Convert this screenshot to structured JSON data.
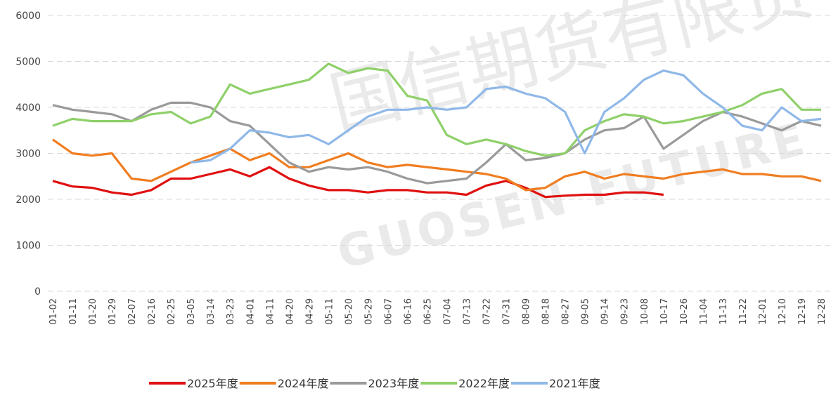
{
  "chart_data": {
    "type": "line",
    "watermark": [
      "国信期货有限责",
      "GUOSEN FUTURE"
    ],
    "categories": [
      "01-02",
      "01-11",
      "01-20",
      "01-29",
      "02-07",
      "02-16",
      "02-25",
      "03-05",
      "03-14",
      "03-23",
      "04-01",
      "04-11",
      "04-20",
      "04-29",
      "05-11",
      "05-20",
      "05-29",
      "06-07",
      "06-16",
      "06-25",
      "07-04",
      "07-13",
      "07-22",
      "07-31",
      "08-09",
      "08-18",
      "08-27",
      "09-05",
      "09-14",
      "09-23",
      "10-08",
      "10-17",
      "10-26",
      "11-04",
      "11-13",
      "11-22",
      "12-01",
      "12-10",
      "12-19",
      "12-28"
    ],
    "series": [
      {
        "name": "2025年度",
        "color": "#e01010",
        "values": [
          2400,
          2280,
          2250,
          2150,
          2100,
          2200,
          2450,
          2450,
          2550,
          2650,
          2500,
          2700,
          2450,
          2300,
          2200,
          2200,
          2150,
          2200,
          2200,
          2150,
          2150,
          2100,
          2300,
          2400,
          2250,
          2050,
          2080,
          2100,
          2100,
          2150,
          2150,
          2100,
          null,
          null,
          null,
          null,
          null,
          null,
          null,
          null
        ]
      },
      {
        "name": "2024年度",
        "color": "#f07d20",
        "values": [
          3300,
          3000,
          2950,
          3000,
          2450,
          2400,
          2600,
          2800,
          2950,
          3100,
          2850,
          3000,
          2700,
          2700,
          2850,
          3000,
          2800,
          2700,
          2750,
          2700,
          2650,
          2600,
          2550,
          2450,
          2200,
          2250,
          2500,
          2600,
          2450,
          2550,
          2500,
          2450,
          2550,
          2600,
          2650,
          2550,
          2550,
          2500,
          2500,
          2400
        ]
      },
      {
        "name": "2023年度",
        "color": "#9a9a9a",
        "values": [
          4050,
          3950,
          3900,
          3850,
          3700,
          3950,
          4100,
          4100,
          4000,
          3700,
          3600,
          3200,
          2800,
          2600,
          2700,
          2650,
          2700,
          2600,
          2450,
          2350,
          2400,
          2450,
          2800,
          3200,
          2850,
          2900,
          3000,
          3300,
          3500,
          3550,
          3800,
          3100,
          3400,
          3700,
          3900,
          3800,
          3650,
          3500,
          3700,
          3600
        ]
      },
      {
        "name": "2022年度",
        "color": "#8fd06a",
        "values": [
          3600,
          3750,
          3700,
          3700,
          3700,
          3850,
          3900,
          3650,
          3800,
          4500,
          4300,
          4400,
          4500,
          4600,
          4950,
          4750,
          4850,
          4800,
          4250,
          4150,
          3400,
          3200,
          3300,
          3200,
          3050,
          2950,
          3000,
          3500,
          3700,
          3850,
          3800,
          3650,
          3700,
          3800,
          3900,
          4050,
          4300,
          4400,
          3950,
          3950
        ]
      },
      {
        "name": "2021年度",
        "color": "#8fb8e8",
        "values": [
          null,
          null,
          null,
          null,
          null,
          null,
          null,
          2800,
          2850,
          3100,
          3500,
          3450,
          3350,
          3400,
          3200,
          3500,
          3800,
          3950,
          3950,
          4000,
          3950,
          4000,
          4400,
          4450,
          4300,
          4200,
          3900,
          3000,
          3900,
          4200,
          4600,
          4800,
          4700,
          4300,
          4000,
          3600,
          3500,
          4000,
          3700,
          3750
        ]
      }
    ],
    "ylim": [
      0,
      6000
    ],
    "yticks": [
      0,
      1000,
      2000,
      3000,
      4000,
      5000,
      6000
    ],
    "grid": true,
    "legend": "bottom"
  }
}
